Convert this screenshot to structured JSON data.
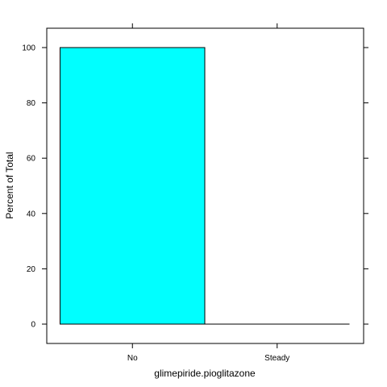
{
  "chart_data": {
    "type": "bar",
    "title": "",
    "xlabel": "glimepiride.pioglitazone",
    "ylabel": "Percent of Total",
    "categories": [
      "No",
      "Steady"
    ],
    "values": [
      100,
      0
    ],
    "ylim": [
      -6.8,
      107
    ],
    "yticks": [
      0,
      20,
      40,
      60,
      80,
      100
    ],
    "ytick_labels": [
      "0",
      "20",
      "40",
      "60",
      "80",
      "100"
    ],
    "grid": false,
    "bar_color": "#00ffff",
    "bar_edge_color": "#000000"
  }
}
